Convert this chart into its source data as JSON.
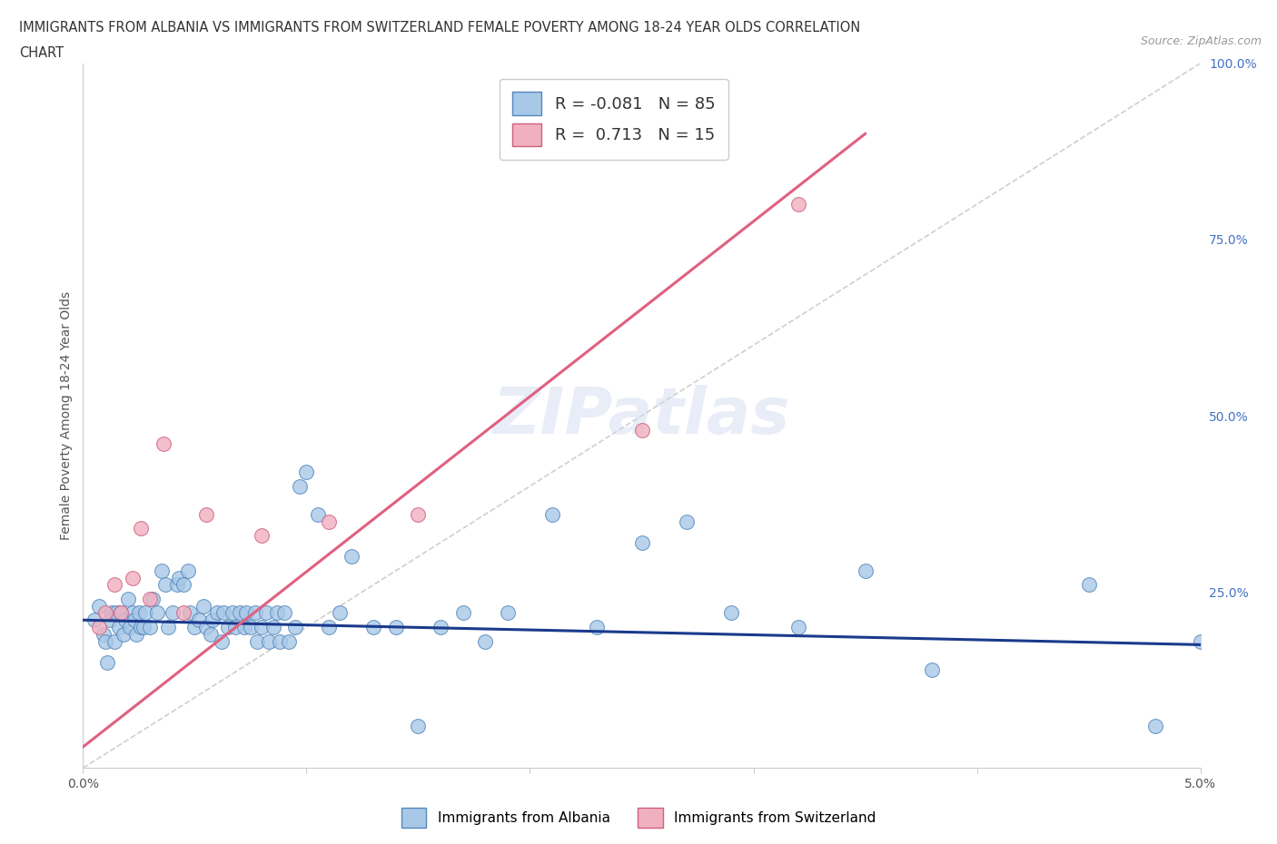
{
  "title_line1": "IMMIGRANTS FROM ALBANIA VS IMMIGRANTS FROM SWITZERLAND FEMALE POVERTY AMONG 18-24 YEAR OLDS CORRELATION",
  "title_line2": "CHART",
  "source": "Source: ZipAtlas.com",
  "ylabel": "Female Poverty Among 18-24 Year Olds",
  "xlim": [
    0.0,
    5.0
  ],
  "ylim": [
    0.0,
    100.0
  ],
  "x_tick_labels": [
    "0.0%",
    "",
    "",
    "",
    "",
    "5.0%"
  ],
  "y_ticks_right": [
    25.0,
    50.0,
    75.0,
    100.0
  ],
  "y_tick_labels_right": [
    "25.0%",
    "50.0%",
    "75.0%",
    "100.0%"
  ],
  "albania_color": "#a8c8e8",
  "albania_edge": "#5588bb",
  "switzerland_color": "#f0b0c0",
  "switzerland_edge": "#d06080",
  "albania_R": -0.081,
  "albania_N": 85,
  "switzerland_R": 0.713,
  "switzerland_N": 15,
  "trend_albania_color": "#1a3a8c",
  "trend_switzerland_color": "#e06080",
  "ref_line_color": "#bbbbbb",
  "legend_label_albania": "Immigrants from Albania",
  "legend_label_switzerland": "Immigrants from Switzerland",
  "albania_trend_x0": 0.0,
  "albania_trend_y0": 21.0,
  "albania_trend_x1": 5.0,
  "albania_trend_y1": 17.5,
  "switzerland_trend_x0": 0.0,
  "switzerland_trend_y0": 3.0,
  "switzerland_trend_x1": 3.5,
  "switzerland_trend_y1": 90.0,
  "albania_x": [
    0.05,
    0.07,
    0.09,
    0.1,
    0.11,
    0.12,
    0.13,
    0.14,
    0.15,
    0.16,
    0.17,
    0.18,
    0.19,
    0.2,
    0.21,
    0.22,
    0.23,
    0.24,
    0.25,
    0.26,
    0.27,
    0.28,
    0.3,
    0.31,
    0.33,
    0.35,
    0.37,
    0.38,
    0.4,
    0.42,
    0.43,
    0.45,
    0.47,
    0.48,
    0.5,
    0.52,
    0.54,
    0.55,
    0.57,
    0.58,
    0.6,
    0.62,
    0.63,
    0.65,
    0.67,
    0.68,
    0.7,
    0.72,
    0.73,
    0.75,
    0.77,
    0.78,
    0.8,
    0.82,
    0.83,
    0.85,
    0.87,
    0.88,
    0.9,
    0.92,
    0.95,
    0.97,
    1.0,
    1.05,
    1.1,
    1.15,
    1.2,
    1.3,
    1.4,
    1.5,
    1.6,
    1.7,
    1.8,
    1.9,
    2.1,
    2.3,
    2.5,
    2.7,
    3.2,
    3.5,
    3.8,
    4.5,
    4.8,
    5.0,
    2.9
  ],
  "albania_y": [
    21.0,
    23.0,
    19.0,
    18.0,
    15.0,
    21.0,
    22.0,
    18.0,
    22.0,
    20.0,
    22.0,
    19.0,
    21.0,
    24.0,
    20.0,
    22.0,
    21.0,
    19.0,
    22.0,
    20.0,
    20.0,
    22.0,
    20.0,
    24.0,
    22.0,
    28.0,
    26.0,
    20.0,
    22.0,
    26.0,
    27.0,
    26.0,
    28.0,
    22.0,
    20.0,
    21.0,
    23.0,
    20.0,
    19.0,
    21.0,
    22.0,
    18.0,
    22.0,
    20.0,
    22.0,
    20.0,
    22.0,
    20.0,
    22.0,
    20.0,
    22.0,
    18.0,
    20.0,
    22.0,
    18.0,
    20.0,
    22.0,
    18.0,
    22.0,
    18.0,
    20.0,
    40.0,
    42.0,
    36.0,
    20.0,
    22.0,
    30.0,
    20.0,
    20.0,
    6.0,
    20.0,
    22.0,
    18.0,
    22.0,
    36.0,
    20.0,
    32.0,
    35.0,
    20.0,
    28.0,
    14.0,
    26.0,
    6.0,
    18.0,
    22.0
  ],
  "switzerland_x": [
    0.07,
    0.1,
    0.14,
    0.17,
    0.22,
    0.26,
    0.3,
    0.36,
    0.45,
    0.55,
    0.8,
    1.1,
    1.5,
    2.5,
    3.2
  ],
  "switzerland_y": [
    20.0,
    22.0,
    26.0,
    22.0,
    27.0,
    34.0,
    24.0,
    46.0,
    22.0,
    36.0,
    33.0,
    35.0,
    36.0,
    48.0,
    80.0
  ]
}
